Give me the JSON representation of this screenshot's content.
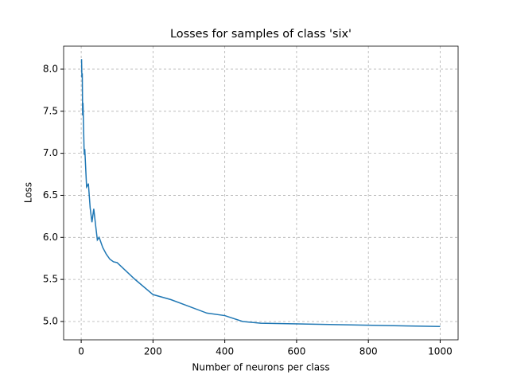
{
  "chart_data": {
    "type": "line",
    "title": "Losses for samples of class 'six'",
    "x_label": "Number of neurons per class",
    "y_label": "Loss",
    "x": [
      1,
      2,
      3,
      4,
      5,
      6,
      8,
      9,
      10,
      15,
      18,
      20,
      25,
      30,
      35,
      40,
      45,
      50,
      60,
      70,
      80,
      90,
      100,
      150,
      200,
      250,
      300,
      350,
      400,
      450,
      500,
      1000
    ],
    "series": [
      {
        "name": "Loss",
        "color": "#1f77b4",
        "values": [
          8.12,
          7.9,
          7.95,
          7.45,
          7.6,
          7.42,
          7.05,
          6.98,
          7.05,
          6.6,
          6.62,
          6.64,
          6.35,
          6.18,
          6.34,
          6.15,
          5.97,
          6.0,
          5.88,
          5.8,
          5.74,
          5.71,
          5.7,
          5.5,
          5.32,
          5.26,
          5.18,
          5.1,
          5.07,
          5.0,
          4.98,
          4.94
        ]
      }
    ],
    "xlim": [
      -48.95,
      1049.95
    ],
    "ylim": [
      4.782,
      8.274
    ],
    "xticks": [
      0,
      200,
      400,
      600,
      800,
      1000
    ],
    "yticks": [
      {
        "value": 5,
        "label": "5.0"
      },
      5.5,
      {
        "value": 6,
        "label": "6.0"
      },
      6.5,
      {
        "value": 7,
        "label": "7.0"
      },
      7.5,
      {
        "value": 8,
        "label": "8.0"
      }
    ],
    "grid": true
  }
}
